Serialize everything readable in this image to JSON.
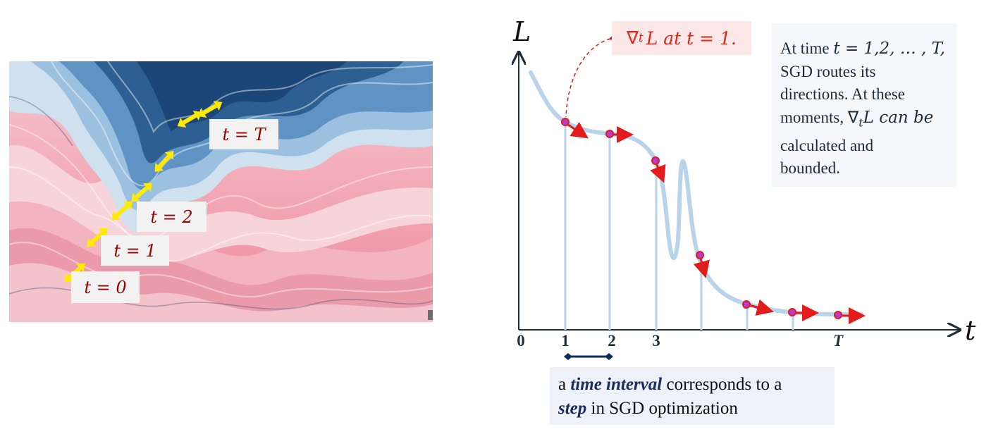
{
  "landscape": {
    "labels": [
      {
        "text": "t = 0"
      },
      {
        "text": "t = 1"
      },
      {
        "text": "t = 2"
      },
      {
        "text": "t = T"
      }
    ]
  },
  "chart": {
    "y_axis_label": "L",
    "x_axis_label": "t",
    "tick_labels": [
      "0",
      "1",
      "2",
      "3",
      "T"
    ],
    "gradient_label_prefix": "∇",
    "gradient_label_sub": "t",
    "gradient_label_rest": "L at t = 1.",
    "colors": {
      "curve": "#b9d3ea",
      "arrow": "#e21b1b",
      "point": "#b43ccf",
      "axis": "#1f2d3d",
      "interval": "#0f2a5c"
    }
  },
  "note": {
    "line1_pre": "At time ",
    "line1_math": "t = 1,2, … , T,",
    "line2": "SGD routes its",
    "line3": "directions. At these",
    "line4_pre": "moments, ∇",
    "line4_sub": "t",
    "line4_post": "L can be",
    "line5": "calculated and",
    "line6": "bounded."
  },
  "caption": {
    "pre": "a ",
    "bold1": "time interval",
    "mid": " corresponds to a",
    "bold2": "step",
    "post": " in SGD optimization"
  }
}
